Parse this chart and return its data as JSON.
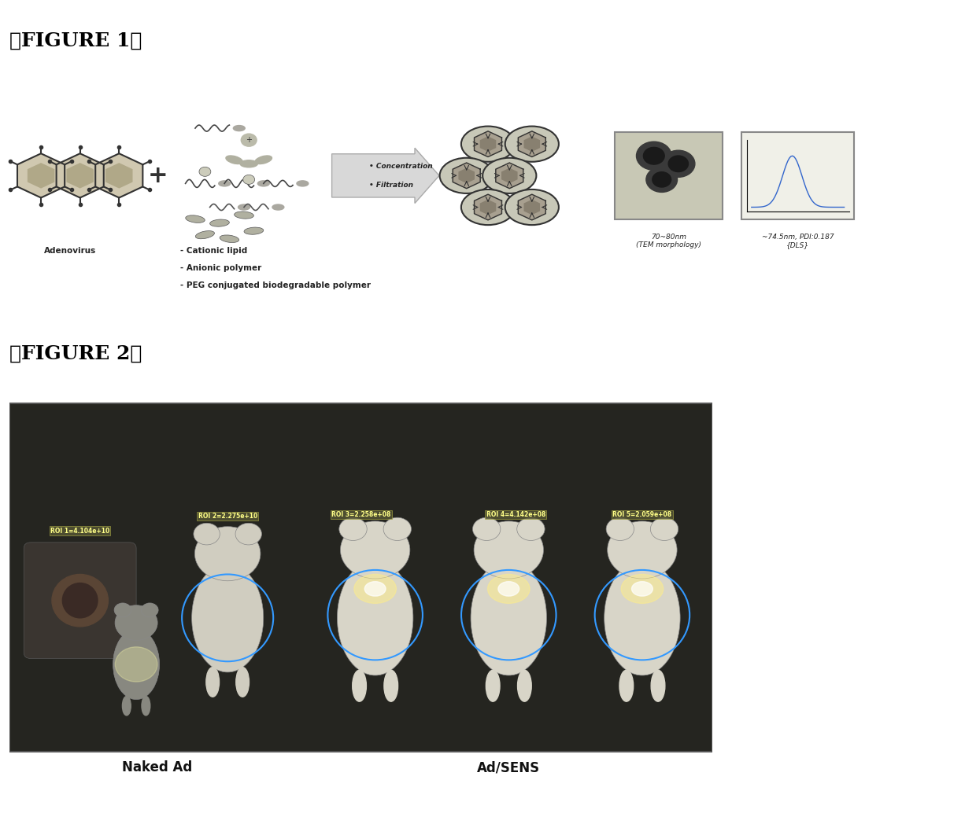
{
  "fig1_title": "【FIGURE 1】",
  "fig2_title": "【FIGURE 2】",
  "adenovirus_label": "Adenovirus",
  "components_label": [
    "Cationic lipid",
    "Anionic polymer",
    "PEG conjugated biodegradable polymer"
  ],
  "process_labels": [
    "Concentration",
    "Filtration"
  ],
  "tem_label": "70~80nm\n(TEM morphology)",
  "dls_label": "~74.5nm, PDI:0.187\n{DLS}",
  "naked_ad_label": "Naked Ad",
  "ad_sens_label": "Ad/SENS",
  "roi_labels": [
    "ROI 1=4.104e+10",
    "ROI 2=2.275e+10",
    "ROI 3=2.258e+08",
    "ROI 4=4.142e+08",
    "ROI 5=2.059e+08"
  ],
  "bg_color": "#ffffff",
  "fig1_bg": "#f5f5f0",
  "arrow_color": "#cccccc",
  "text_color": "#000000",
  "bold_text_color": "#111111"
}
